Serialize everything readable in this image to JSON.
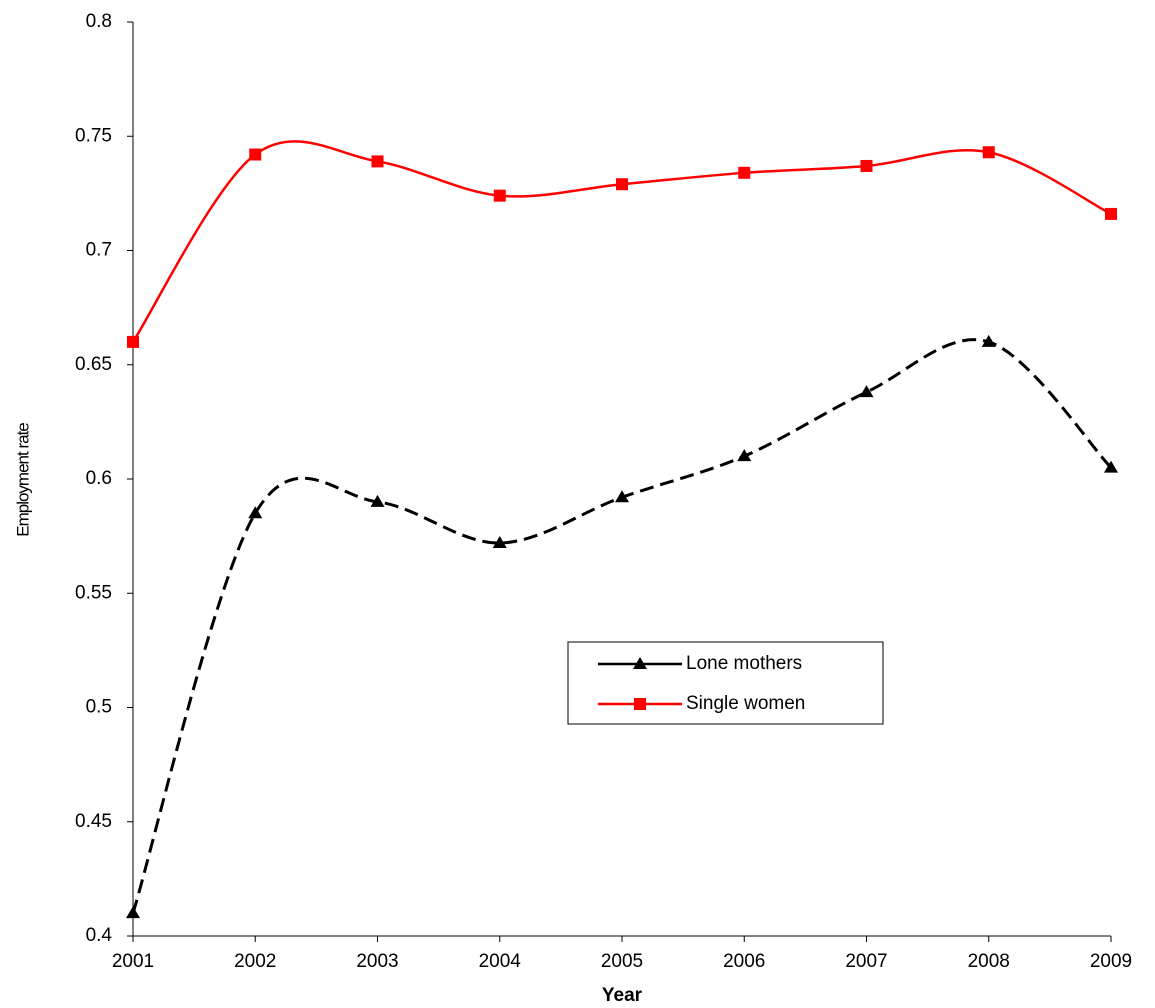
{
  "chart_data": {
    "type": "line",
    "x_label": "Year",
    "y_label": "Employment rate",
    "categories": [
      "2001",
      "2002",
      "2003",
      "2004",
      "2005",
      "2006",
      "2007",
      "2008",
      "2009"
    ],
    "series": [
      {
        "name": "Lone mothers",
        "color": "#000000",
        "marker": "triangle",
        "line_style": "dashed",
        "values": [
          0.41,
          0.585,
          0.59,
          0.572,
          0.592,
          0.61,
          0.638,
          0.66,
          0.605
        ]
      },
      {
        "name": "Single women",
        "color": "#ff0000",
        "marker": "square",
        "line_style": "solid",
        "values": [
          0.66,
          0.742,
          0.739,
          0.724,
          0.729,
          0.734,
          0.737,
          0.743,
          0.716
        ]
      }
    ],
    "smooth": true,
    "ylim": [
      0.4,
      0.8
    ],
    "yticks": [
      0.4,
      0.45,
      0.5,
      0.55,
      0.6,
      0.65,
      0.7,
      0.75,
      0.8
    ]
  }
}
